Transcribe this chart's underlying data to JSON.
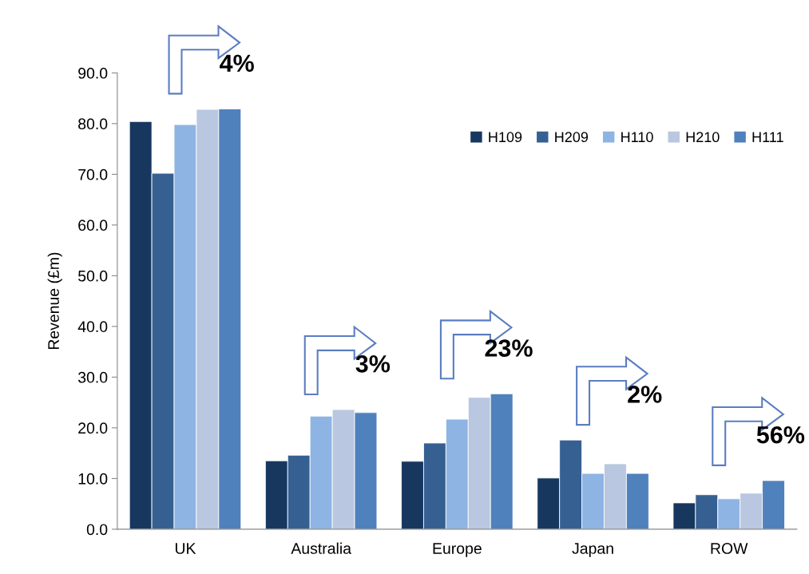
{
  "chart_data": {
    "type": "bar",
    "ylabel": "Revenue (£m)",
    "categories": [
      "UK",
      "Australia",
      "Europe",
      "Japan",
      "ROW"
    ],
    "series": [
      {
        "name": "H109",
        "color": "#17375e",
        "values": [
          80.4,
          13.5,
          13.4,
          10.1,
          5.2
        ]
      },
      {
        "name": "H209",
        "color": "#366092",
        "values": [
          70.2,
          14.6,
          17.0,
          17.6,
          6.8
        ]
      },
      {
        "name": "H110",
        "color": "#8eb4e3",
        "values": [
          79.8,
          22.3,
          21.7,
          11.0,
          6.0
        ]
      },
      {
        "name": "H210",
        "color": "#b9c7e0",
        "values": [
          82.8,
          23.6,
          26.0,
          12.9,
          7.1
        ]
      },
      {
        "name": "H111",
        "color": "#4f81bd",
        "values": [
          82.9,
          23.0,
          26.7,
          11.0,
          9.6
        ]
      }
    ],
    "ylim": [
      0,
      90
    ],
    "yticks": [
      {
        "value": 0,
        "label": "0.0"
      },
      {
        "value": 10,
        "label": "10.0"
      },
      {
        "value": 20,
        "label": "20.0"
      },
      {
        "value": 30,
        "label": "30.0"
      },
      {
        "value": 40,
        "label": "40.0"
      },
      {
        "value": 50,
        "label": "50.0"
      },
      {
        "value": 60,
        "label": "60.0"
      },
      {
        "value": 70,
        "label": "70.0"
      },
      {
        "value": 80,
        "label": "80.0"
      },
      {
        "value": 90,
        "label": "90.0"
      }
    ],
    "annotations": [
      "4%",
      "3%",
      "23%",
      "2%",
      "56%"
    ],
    "legend": "top right",
    "grid": false
  }
}
